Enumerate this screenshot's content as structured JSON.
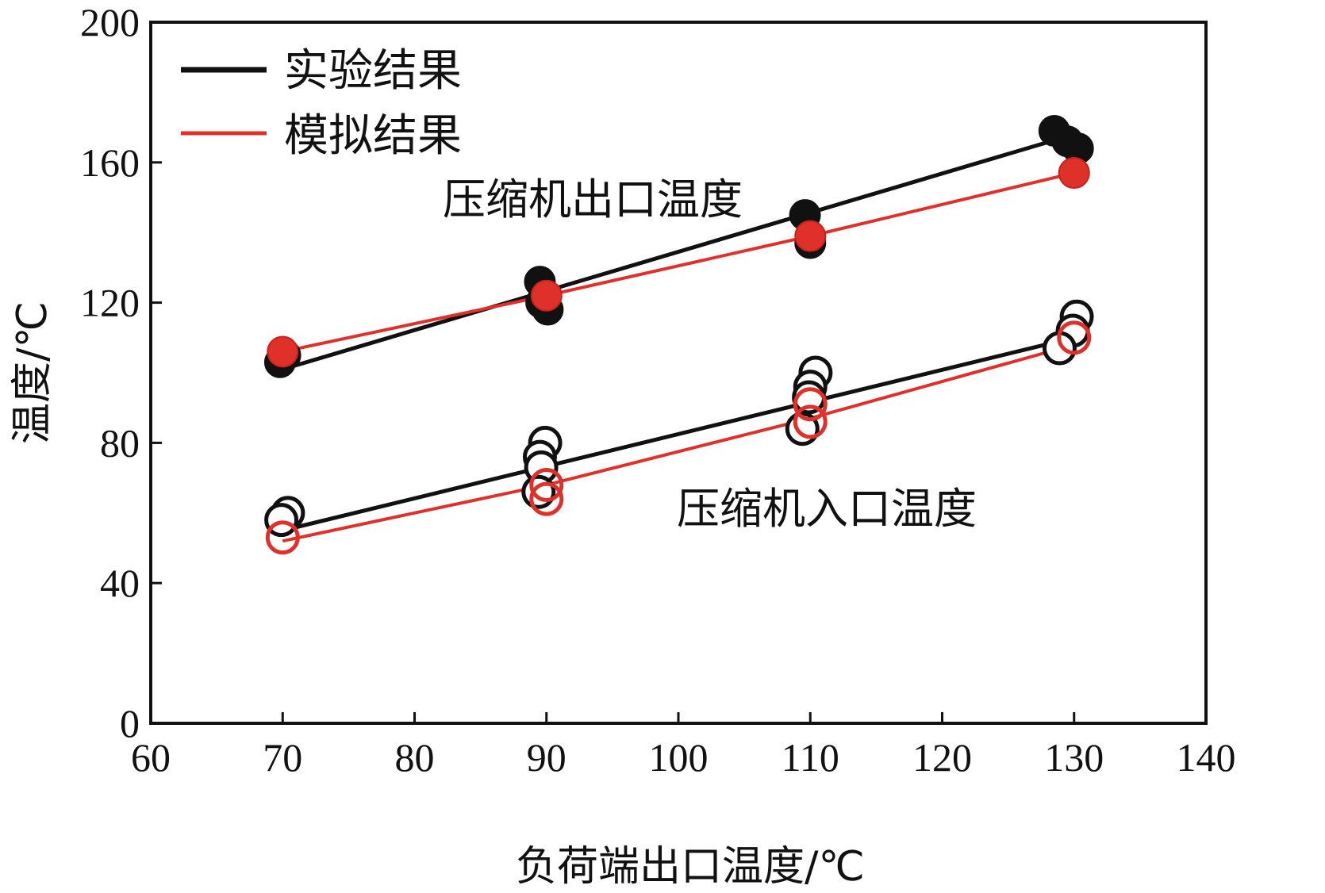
{
  "chart_data": {
    "type": "line",
    "title": "",
    "xlabel": "负荷端出口温度/℃",
    "ylabel": "温度/℃",
    "xlim": [
      60,
      140
    ],
    "ylim": [
      0,
      200
    ],
    "xticks": [
      "60",
      "70",
      "80",
      "90",
      "100",
      "110",
      "120",
      "130",
      "140"
    ],
    "yticks": [
      "0",
      "40",
      "80",
      "120",
      "160",
      "200"
    ],
    "legend": {
      "position": "top-left",
      "entries": [
        {
          "label": "实验结果",
          "color": "#111111"
        },
        {
          "label": "模拟结果",
          "color": "#e0302a"
        }
      ]
    },
    "annotations": [
      {
        "text": "压缩机出口温度",
        "x": 73,
        "y": 150
      },
      {
        "text": "压缩机入口温度",
        "x": 90.5,
        "y": 62
      }
    ],
    "colors": {
      "experiment": "#111111",
      "simulation": "#e0302a"
    },
    "series": [
      {
        "name": "实验结果-压缩机出口温度",
        "group": "experiment",
        "marker": "filled",
        "line": [
          [
            70,
            101
          ],
          [
            130,
            168
          ]
        ],
        "points": [
          [
            69.8,
            103
          ],
          [
            70.2,
            105
          ],
          [
            89.5,
            126
          ],
          [
            89.6,
            120
          ],
          [
            90.1,
            118
          ],
          [
            109.6,
            145
          ],
          [
            110.0,
            137
          ],
          [
            128.5,
            169
          ],
          [
            129.5,
            166
          ],
          [
            130.3,
            164
          ]
        ]
      },
      {
        "name": "模拟结果-压缩机出口温度",
        "group": "simulation",
        "marker": "filled",
        "line": [
          [
            70,
            106
          ],
          [
            90,
            122
          ],
          [
            110,
            139
          ],
          [
            130,
            157
          ]
        ],
        "points": [
          [
            70,
            106
          ],
          [
            90,
            122
          ],
          [
            110,
            139
          ],
          [
            130,
            157
          ]
        ]
      },
      {
        "name": "实验结果-压缩机入口温度",
        "group": "experiment",
        "marker": "open",
        "line": [
          [
            70,
            55
          ],
          [
            130,
            110
          ]
        ],
        "points": [
          [
            70.4,
            60
          ],
          [
            69.9,
            58
          ],
          [
            89.9,
            80
          ],
          [
            89.5,
            76
          ],
          [
            89.6,
            73
          ],
          [
            89.4,
            66
          ],
          [
            110.4,
            100
          ],
          [
            110.0,
            96
          ],
          [
            109.9,
            93
          ],
          [
            109.4,
            84
          ],
          [
            130.2,
            116
          ],
          [
            129.9,
            112
          ],
          [
            128.9,
            107
          ]
        ]
      },
      {
        "name": "模拟结果-压缩机入口温度",
        "group": "simulation",
        "marker": "open",
        "line": [
          [
            70,
            52
          ],
          [
            90,
            68
          ],
          [
            110,
            87
          ],
          [
            130,
            108
          ]
        ],
        "points": [
          [
            70,
            53
          ],
          [
            90,
            68
          ],
          [
            90,
            64
          ],
          [
            110,
            91
          ],
          [
            110,
            86
          ],
          [
            130,
            110
          ]
        ]
      }
    ]
  }
}
